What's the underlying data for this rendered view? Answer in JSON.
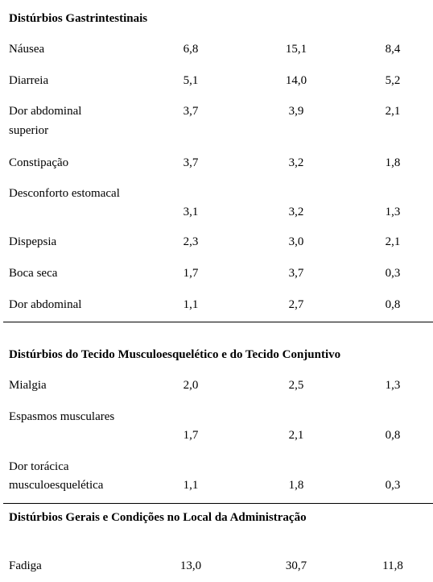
{
  "sections": [
    {
      "title": "Distúrbios Gastrintestinais",
      "rows": [
        {
          "label": "Náusea",
          "v1": "6,8",
          "v2": "15,1",
          "v3": "8,4"
        },
        {
          "label": "Diarreia",
          "v1": "5,1",
          "v2": "14,0",
          "v3": "5,2"
        },
        {
          "label_line1": "Dor abdominal",
          "label_line2": "superior",
          "v1": "3,7",
          "v2": "3,9",
          "v3": "2,1"
        },
        {
          "label": "Constipação",
          "v1": "3,7",
          "v2": "3,2",
          "v3": "1,8"
        },
        {
          "label": "Desconforto estomacal",
          "v1": "3,1",
          "v2": "3,2",
          "v3": "1,3"
        },
        {
          "label": "Dispepsia",
          "v1": "2,3",
          "v2": "3,0",
          "v3": "2,1"
        },
        {
          "label": "Boca seca",
          "v1": "1,7",
          "v2": "3,7",
          "v3": "0,3"
        },
        {
          "label": "Dor abdominal",
          "v1": "1,1",
          "v2": "2,7",
          "v3": "0,8"
        }
      ]
    },
    {
      "title": "Distúrbios do Tecido Musculoesquelético e do Tecido Conjuntivo",
      "rows": [
        {
          "label": "Mialgia",
          "v1": "2,0",
          "v2": "2,5",
          "v3": "1,3"
        },
        {
          "label": "Espasmos musculares",
          "v1": "1,7",
          "v2": "2,1",
          "v3": "0,8"
        },
        {
          "label_line1": "Dor torácica",
          "label_line2": "musculoesquelética",
          "v1": "1,1",
          "v2": "1,8",
          "v3": "0,3"
        }
      ]
    },
    {
      "title": "Distúrbios Gerais e Condições no Local da Administração",
      "rows": [
        {
          "label": "Fadiga",
          "v1": "13,0",
          "v2": "30,7",
          "v3": "11,8"
        }
      ]
    }
  ]
}
